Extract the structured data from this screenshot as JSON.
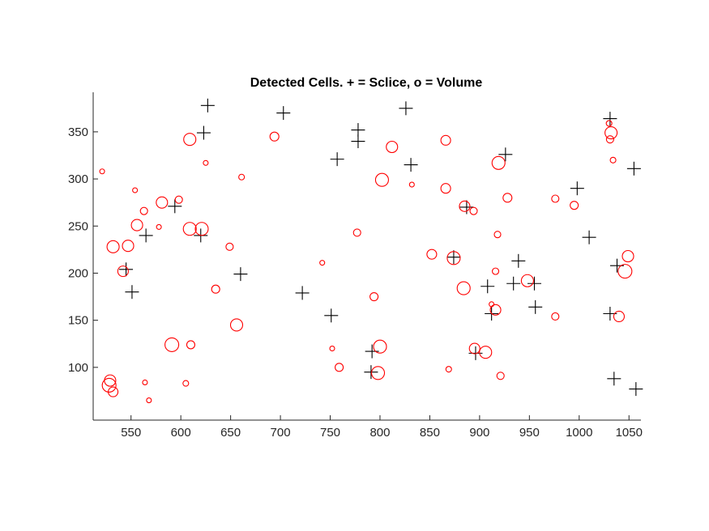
{
  "chart_data": {
    "type": "scatter",
    "title": "Detected Cells. + = Sclice, o = Volume",
    "xlabel": "",
    "ylabel": "",
    "xlim": [
      512,
      1062
    ],
    "ylim": [
      44,
      392
    ],
    "xticks": [
      550,
      600,
      650,
      700,
      750,
      800,
      850,
      900,
      950,
      1000,
      1050
    ],
    "yticks": [
      100,
      150,
      200,
      250,
      300,
      350
    ],
    "grid": false,
    "colors": {
      "slice": "#000000",
      "volume": "#ff0000",
      "axes": "#262626"
    },
    "series": [
      {
        "marker": "+",
        "points": [
          [
            627,
            378
          ],
          [
            623,
            349
          ],
          [
            703,
            370
          ],
          [
            778,
            352
          ],
          [
            778,
            340
          ],
          [
            826,
            375
          ],
          [
            757,
            321
          ],
          [
            831,
            315
          ],
          [
            926,
            326
          ],
          [
            1031,
            364
          ],
          [
            1055,
            311
          ],
          [
            998,
            290
          ],
          [
            887,
            270
          ],
          [
            594,
            271
          ],
          [
            620,
            240
          ],
          [
            565,
            240
          ],
          [
            1010,
            238
          ],
          [
            545,
            204
          ],
          [
            551,
            180
          ],
          [
            660,
            199
          ],
          [
            722,
            179
          ],
          [
            751,
            155
          ],
          [
            874,
            217
          ],
          [
            939,
            213
          ],
          [
            1038,
            208
          ],
          [
            908,
            186
          ],
          [
            934,
            189
          ],
          [
            955,
            189
          ],
          [
            956,
            164
          ],
          [
            912,
            157
          ],
          [
            1031,
            157
          ],
          [
            792,
            117
          ],
          [
            896,
            115
          ],
          [
            791,
            95
          ],
          [
            1035,
            88
          ],
          [
            1057,
            77
          ]
        ]
      },
      {
        "marker": "o",
        "points": [
          [
            609,
            342,
            7.5
          ],
          [
            625,
            317,
            3
          ],
          [
            661,
            302,
            3.5
          ],
          [
            694,
            345,
            5.5
          ],
          [
            812,
            334,
            7
          ],
          [
            866,
            341,
            6
          ],
          [
            1030,
            359,
            3.5
          ],
          [
            1032,
            349,
            7.5
          ],
          [
            1031,
            342,
            4.5
          ],
          [
            1034,
            320,
            3.5
          ],
          [
            521,
            308,
            3
          ],
          [
            554,
            288,
            3
          ],
          [
            802,
            299,
            8
          ],
          [
            832,
            294,
            3
          ],
          [
            866,
            290,
            6
          ],
          [
            919,
            317,
            8
          ],
          [
            928,
            280,
            5.5
          ],
          [
            976,
            279,
            4.5
          ],
          [
            995,
            272,
            5
          ],
          [
            598,
            278,
            4.5
          ],
          [
            581,
            275,
            7
          ],
          [
            563,
            266,
            4.5
          ],
          [
            578,
            249,
            3
          ],
          [
            556,
            251,
            7
          ],
          [
            609,
            247,
            8
          ],
          [
            621,
            247,
            8
          ],
          [
            532,
            228,
            7.5
          ],
          [
            547,
            229,
            7
          ],
          [
            542,
            202,
            6.5
          ],
          [
            649,
            228,
            4.5
          ],
          [
            635,
            183,
            5
          ],
          [
            656,
            145,
            7.5
          ],
          [
            742,
            211,
            3
          ],
          [
            777,
            243,
            4.5
          ],
          [
            794,
            175,
            5
          ],
          [
            852,
            220,
            6
          ],
          [
            874,
            216,
            8
          ],
          [
            885,
            271,
            6.5
          ],
          [
            894,
            266,
            4.5
          ],
          [
            918,
            241,
            4
          ],
          [
            916,
            202,
            4
          ],
          [
            884,
            184,
            8
          ],
          [
            948,
            192,
            7.5
          ],
          [
            912,
            167,
            3
          ],
          [
            916,
            161,
            6.5
          ],
          [
            976,
            154,
            4.5
          ],
          [
            1049,
            218,
            7
          ],
          [
            1046,
            202,
            8.5
          ],
          [
            1040,
            154,
            6.5
          ],
          [
            591,
            124,
            8.5
          ],
          [
            610,
            124,
            5
          ],
          [
            752,
            120,
            3
          ],
          [
            759,
            100,
            5
          ],
          [
            800,
            122,
            8
          ],
          [
            798,
            94,
            8
          ],
          [
            869,
            98,
            3.5
          ],
          [
            895,
            120,
            6.5
          ],
          [
            906,
            116,
            7.5
          ],
          [
            921,
            91,
            4.5
          ],
          [
            529,
            86,
            7
          ],
          [
            528,
            81,
            8.5
          ],
          [
            532,
            74,
            6
          ],
          [
            564,
            84,
            3
          ],
          [
            568,
            65,
            3
          ],
          [
            605,
            83,
            3.5
          ]
        ]
      }
    ]
  }
}
